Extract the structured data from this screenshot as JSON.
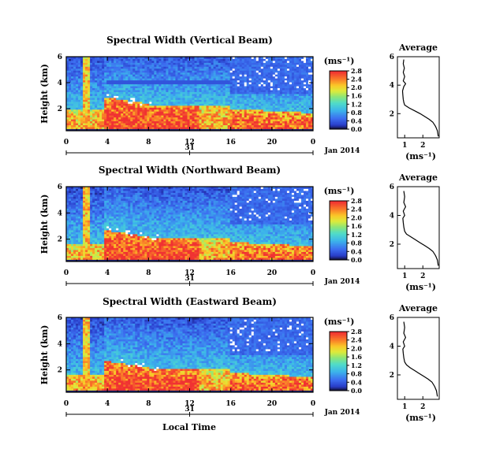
{
  "chart_data": [
    {
      "type": "heatmap",
      "title": "Spectral Width (Vertical Beam)",
      "ylabel": "Height (km)",
      "xlabel": "",
      "x_ticks": [
        "0",
        "4",
        "8",
        "12",
        "16",
        "20",
        "0"
      ],
      "y_ticks": [
        "2",
        "4",
        "6"
      ],
      "date_ticks": [
        "31"
      ],
      "date_label": "Jan 2014",
      "xlim": [
        0,
        24
      ],
      "ylim": [
        0.3,
        6
      ],
      "colorbar": {
        "unit": "(ms⁻¹)",
        "ticks": [
          "0.0",
          "0.4",
          "0.8",
          "1.2",
          "1.6",
          "2.0",
          "2.4",
          "2.8"
        ],
        "range": [
          0,
          2.8
        ]
      },
      "average_profile": {
        "title": "Average",
        "xlabel": "(ms⁻¹)",
        "x_ticks": [
          "1",
          "2"
        ],
        "y_ticks": [
          "2",
          "4",
          "6"
        ],
        "xlim": [
          0.6,
          2.9
        ],
        "ylim": [
          0.3,
          6
        ],
        "points": [
          [
            2.85,
            0.4
          ],
          [
            2.8,
            0.8
          ],
          [
            2.7,
            1.1
          ],
          [
            2.55,
            1.4
          ],
          [
            2.35,
            1.6
          ],
          [
            2.1,
            1.8
          ],
          [
            1.85,
            2.0
          ],
          [
            1.55,
            2.2
          ],
          [
            1.25,
            2.4
          ],
          [
            1.0,
            2.6
          ],
          [
            0.95,
            2.8
          ],
          [
            0.92,
            3.0
          ],
          [
            0.9,
            3.3
          ],
          [
            0.88,
            3.6
          ],
          [
            0.95,
            3.9
          ],
          [
            1.05,
            4.1
          ],
          [
            0.92,
            4.3
          ],
          [
            1.0,
            4.6
          ],
          [
            0.92,
            4.9
          ],
          [
            0.98,
            5.2
          ],
          [
            0.92,
            5.5
          ],
          [
            0.95,
            5.8
          ]
        ]
      }
    },
    {
      "type": "heatmap",
      "title": "Spectral Width (Northward Beam)",
      "ylabel": "Height (km)",
      "xlabel": "",
      "x_ticks": [
        "0",
        "4",
        "8",
        "12",
        "16",
        "20",
        "0"
      ],
      "y_ticks": [
        "2",
        "4",
        "6"
      ],
      "date_ticks": [
        "31"
      ],
      "date_label": "Jan 2014",
      "xlim": [
        0,
        24
      ],
      "ylim": [
        0.3,
        6
      ],
      "colorbar": {
        "unit": "(ms⁻¹)",
        "ticks": [
          "0.0",
          "0.4",
          "0.8",
          "1.2",
          "1.6",
          "2.0",
          "2.4",
          "2.8"
        ],
        "range": [
          0,
          2.8
        ]
      },
      "average_profile": {
        "title": "Average",
        "xlabel": "(ms⁻¹)",
        "x_ticks": [
          "1",
          "2"
        ],
        "y_ticks": [
          "2",
          "4",
          "6"
        ],
        "xlim": [
          0.6,
          2.9
        ],
        "ylim": [
          0.3,
          6
        ],
        "points": [
          [
            2.85,
            0.5
          ],
          [
            2.8,
            0.9
          ],
          [
            2.7,
            1.2
          ],
          [
            2.55,
            1.5
          ],
          [
            2.35,
            1.7
          ],
          [
            2.1,
            1.9
          ],
          [
            1.85,
            2.1
          ],
          [
            1.6,
            2.3
          ],
          [
            1.35,
            2.5
          ],
          [
            1.1,
            2.7
          ],
          [
            1.0,
            2.9
          ],
          [
            0.95,
            3.2
          ],
          [
            0.92,
            3.5
          ],
          [
            0.9,
            3.8
          ],
          [
            1.0,
            4.0
          ],
          [
            0.92,
            4.3
          ],
          [
            1.05,
            4.6
          ],
          [
            0.95,
            4.9
          ],
          [
            1.0,
            5.3
          ],
          [
            0.95,
            5.7
          ]
        ]
      }
    },
    {
      "type": "heatmap",
      "title": "Spectral Width (Eastward Beam)",
      "ylabel": "Height (km)",
      "xlabel": "Local Time",
      "x_ticks": [
        "0",
        "4",
        "8",
        "12",
        "16",
        "20",
        "0"
      ],
      "y_ticks": [
        "2",
        "4",
        "6"
      ],
      "date_ticks": [
        "31"
      ],
      "date_label": "Jan 2014",
      "xlim": [
        0,
        24
      ],
      "ylim": [
        0.3,
        6
      ],
      "colorbar": {
        "unit": "(ms⁻¹)",
        "ticks": [
          "0.0",
          "0.4",
          "0.8",
          "1.2",
          "1.6",
          "2.0",
          "2.4",
          "2.8"
        ],
        "range": [
          0,
          2.8
        ]
      },
      "average_profile": {
        "title": "Average",
        "xlabel": "(ms⁻¹)",
        "x_ticks": [
          "1",
          "2"
        ],
        "y_ticks": [
          "2",
          "4",
          "6"
        ],
        "xlim": [
          0.6,
          2.9
        ],
        "ylim": [
          0.3,
          6
        ],
        "points": [
          [
            2.8,
            0.5
          ],
          [
            2.75,
            0.9
          ],
          [
            2.65,
            1.2
          ],
          [
            2.5,
            1.5
          ],
          [
            2.3,
            1.7
          ],
          [
            2.05,
            1.9
          ],
          [
            1.8,
            2.1
          ],
          [
            1.55,
            2.3
          ],
          [
            1.3,
            2.5
          ],
          [
            1.1,
            2.7
          ],
          [
            1.0,
            2.9
          ],
          [
            0.95,
            3.2
          ],
          [
            0.92,
            3.5
          ],
          [
            0.9,
            3.8
          ],
          [
            1.0,
            4.0
          ],
          [
            0.92,
            4.3
          ],
          [
            1.05,
            4.6
          ],
          [
            0.95,
            4.9
          ],
          [
            1.0,
            5.3
          ],
          [
            0.95,
            5.7
          ]
        ]
      }
    }
  ]
}
